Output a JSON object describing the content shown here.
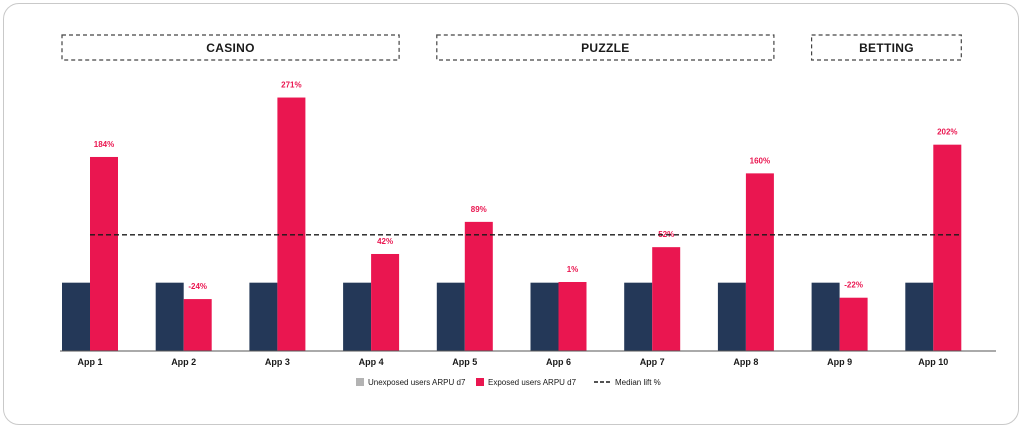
{
  "chart_data": {
    "type": "bar",
    "title": "",
    "xlabel": "",
    "ylabel": "",
    "categories": [
      "App 1",
      "App 2",
      "App 3",
      "App 4",
      "App 5",
      "App 6",
      "App 7",
      "App 8",
      "App 9",
      "App 10"
    ],
    "series": [
      {
        "name": "Unexposed users ARPU d7",
        "color": "#243858",
        "values": [
          100,
          100,
          100,
          100,
          100,
          100,
          100,
          100,
          100,
          100
        ]
      },
      {
        "name": "Exposed users ARPU d7",
        "color": "#ea1650",
        "values": [
          284,
          76,
          371,
          142,
          189,
          101,
          152,
          260,
          78,
          302
        ]
      }
    ],
    "data_labels": [
      "184%",
      "-24%",
      "271%",
      "42%",
      "89%",
      "1%",
      "52%",
      "160%",
      "-22%",
      "202%"
    ],
    "median_line": {
      "name": "Median lift %",
      "value": 170,
      "style": "dashed",
      "color": "#1a1a1a"
    },
    "groups": [
      {
        "label": "CASINO",
        "from": 0,
        "to": 3
      },
      {
        "label": "PUZZLE",
        "from": 4,
        "to": 7
      },
      {
        "label": "BETTING",
        "from": 8,
        "to": 9
      }
    ],
    "ylim": [
      0,
      400
    ],
    "grid": false,
    "legend_position": "bottom-center"
  }
}
